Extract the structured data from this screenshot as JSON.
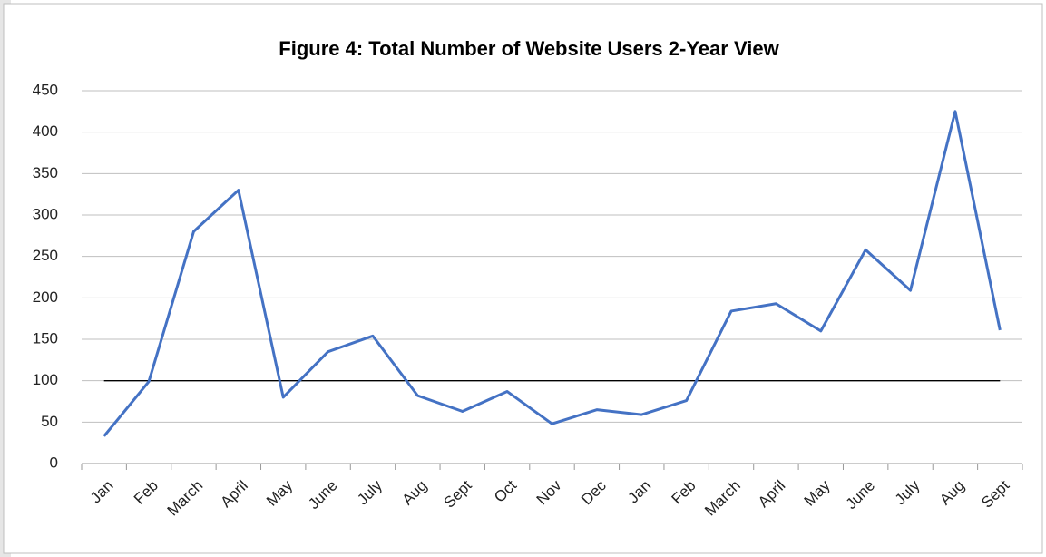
{
  "chart_data": {
    "type": "line",
    "title": "Figure 4: Total Number of Website Users 2-Year View",
    "categories": [
      "Jan",
      "Feb",
      "March",
      "April",
      "May",
      "June",
      "July",
      "Aug",
      "Sept",
      "Oct",
      "Nov",
      "Dec",
      "Jan",
      "Feb",
      "March",
      "April",
      "May",
      "June",
      "July",
      "Aug",
      "Sept"
    ],
    "values": [
      33,
      99,
      280,
      330,
      80,
      135,
      154,
      82,
      63,
      87,
      48,
      65,
      59,
      76,
      184,
      193,
      160,
      258,
      209,
      425,
      161
    ],
    "color": "#4472c4",
    "ylim": [
      0,
      450
    ],
    "yticks": [
      0,
      50,
      100,
      150,
      200,
      250,
      300,
      350,
      400,
      450
    ],
    "grid": true,
    "reference": {
      "value": 100,
      "color": "#000000"
    }
  }
}
